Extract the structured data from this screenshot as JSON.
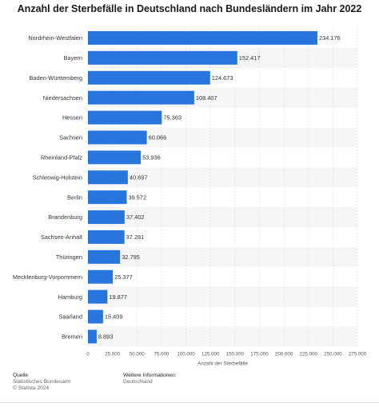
{
  "chart_data": {
    "type": "bar",
    "orientation": "horizontal",
    "title": "Anzahl der Sterbefälle in Deutschland nach Bundesländern im Jahr 2022",
    "xlabel": "Anzahl der Sterbefälle",
    "ylabel": "",
    "xlim": [
      0,
      275000
    ],
    "ticks": [
      "0",
      "25.000",
      "50.000",
      "75.000",
      "100.000",
      "125.000",
      "150.000",
      "175.000",
      "200.000",
      "225.000",
      "250.000",
      "275.000"
    ],
    "categories": [
      "Nordrhein-Westfalen",
      "Bayern",
      "Baden-Württemberg",
      "Niedersachsen",
      "Hessen",
      "Sachsen",
      "Rheinland-Pfalz",
      "Schleswig-Holstein",
      "Berlin",
      "Brandenburg",
      "Sachsen-Anhalt",
      "Thüringen",
      "Mecklenburg-Vorpommern",
      "Hamburg",
      "Saarland",
      "Bremen"
    ],
    "values": [
      234176,
      152417,
      124673,
      108407,
      75363,
      60066,
      53936,
      40697,
      39572,
      37402,
      37281,
      32795,
      25377,
      19877,
      15409,
      8893
    ],
    "value_labels": [
      "234.176",
      "152.417",
      "124.673",
      "108.407",
      "75.363",
      "60.066",
      "53.936",
      "40.697",
      "39.572",
      "37.402",
      "37.281",
      "32.795",
      "25.377",
      "19.877",
      "15.409",
      "8.893"
    ],
    "bar_color": "#2876dd",
    "alt_row_color": "#f5f5f5",
    "grid": true,
    "legend": "none"
  },
  "footer": {
    "source_heading": "Quelle",
    "source_line1": "Statistisches Bundesamt",
    "source_line2": "© Statista 2024",
    "info_heading": "Weitere Informationen:",
    "info_line1": "Deutschland"
  }
}
